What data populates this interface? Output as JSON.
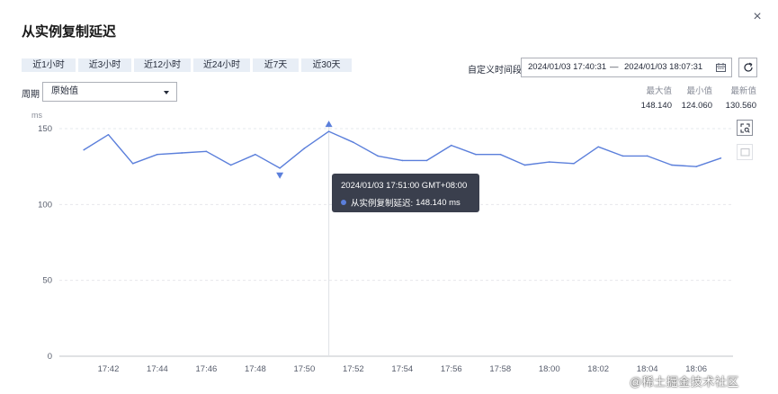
{
  "dialog": {
    "title": "从实例复制延迟",
    "close_icon": "×"
  },
  "quick_ranges": [
    "近1小时",
    "近3小时",
    "近12小时",
    "近24小时",
    "近7天",
    "近30天"
  ],
  "period": {
    "label": "周期",
    "value": "原始值"
  },
  "custom_range": {
    "label": "自定义时间段",
    "start": "2024/01/03 17:40:31",
    "separator": "—",
    "end": "2024/01/03 18:07:31"
  },
  "stats": {
    "max": {
      "label": "最大值",
      "value": "148.140"
    },
    "min": {
      "label": "最小值",
      "value": "124.060"
    },
    "latest": {
      "label": "最新值",
      "value": "130.560"
    }
  },
  "tooltip": {
    "time": "2024/01/03 17:51:00 GMT+08:00",
    "series_label": "从实例复制延迟:",
    "value": "148.140 ms"
  },
  "watermark": "@稀土掘金技术社区",
  "chart_data": {
    "type": "line",
    "unit": "ms",
    "ylim": [
      0,
      150
    ],
    "yticks": [
      0,
      50,
      100,
      150
    ],
    "xticks": [
      {
        "label": "17:42",
        "minute": 1.5
      },
      {
        "label": "17:44",
        "minute": 3.5
      },
      {
        "label": "17:46",
        "minute": 5.5
      },
      {
        "label": "17:48",
        "minute": 7.5
      },
      {
        "label": "17:50",
        "minute": 9.5
      },
      {
        "label": "17:52",
        "minute": 11.5
      },
      {
        "label": "17:54",
        "minute": 13.5
      },
      {
        "label": "17:56",
        "minute": 15.5
      },
      {
        "label": "17:58",
        "minute": 17.5
      },
      {
        "label": "18:00",
        "minute": 19.5
      },
      {
        "label": "18:02",
        "minute": 21.5
      },
      {
        "label": "18:04",
        "minute": 23.5
      },
      {
        "label": "18:06",
        "minute": 25.5
      }
    ],
    "x_range": [
      -0.5,
      27.0
    ],
    "series": [
      {
        "color": "#5b7fdb",
        "x": [
          0.5,
          1.5,
          2.5,
          3.5,
          4.5,
          5.5,
          6.5,
          7.5,
          8.5,
          9.5,
          10.5,
          11.5,
          12.5,
          13.5,
          14.5,
          15.5,
          16.5,
          17.5,
          18.5,
          19.5,
          20.5,
          21.5,
          22.5,
          23.5,
          24.5,
          25.5,
          26.5
        ],
        "values": [
          136,
          146,
          127,
          133,
          134,
          135,
          126,
          133,
          124,
          137,
          148.14,
          141,
          132,
          129,
          129,
          139,
          133,
          133,
          126,
          128,
          127,
          138,
          132,
          132,
          126,
          125,
          130.56
        ]
      }
    ],
    "max_marker": {
      "x": 10.5,
      "value": 148.14
    },
    "min_marker": {
      "x": 8.5,
      "value": 124.06
    },
    "hover_x": 10.5,
    "grid": true
  }
}
